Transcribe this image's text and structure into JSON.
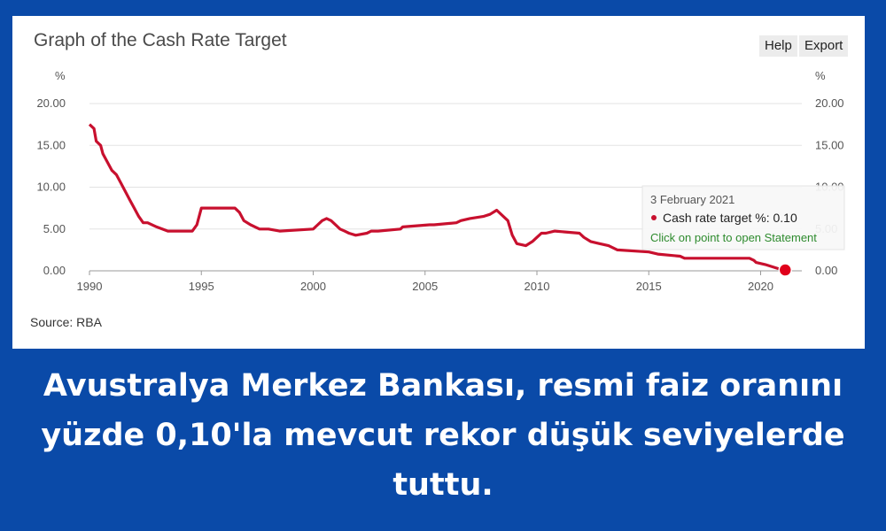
{
  "chart_data": {
    "type": "line",
    "title": "Graph of the Cash Rate Target",
    "ylabel_left": "%",
    "ylabel_right": "%",
    "ylim": [
      0,
      20
    ],
    "xlim": [
      1990,
      2021.1
    ],
    "y_ticks": [
      "0.00",
      "5.00",
      "10.00",
      "15.00",
      "20.00"
    ],
    "x_ticks": [
      "1990",
      "1995",
      "2000",
      "2005",
      "2010",
      "2015",
      "2020"
    ],
    "grid": true,
    "legend": "none",
    "series": [
      {
        "color": "#c8102e",
        "x": [
          1990.0,
          1990.2,
          1990.3,
          1990.5,
          1990.6,
          1990.8,
          1991.0,
          1991.2,
          1991.4,
          1991.6,
          1991.8,
          1992.0,
          1992.2,
          1992.4,
          1992.6,
          1993.0,
          1993.5,
          1994.6,
          1994.8,
          1995.0,
          1996.5,
          1996.7,
          1996.9,
          1997.2,
          1997.6,
          1998.0,
          1998.5,
          2000.0,
          2000.2,
          2000.4,
          2000.6,
          2000.8,
          2001.2,
          2001.4,
          2001.6,
          2001.9,
          2002.4,
          2002.6,
          2002.9,
          2003.9,
          2004.0,
          2005.2,
          2005.4,
          2006.4,
          2006.6,
          2007.0,
          2007.6,
          2007.9,
          2008.2,
          2008.7,
          2008.9,
          2009.1,
          2009.5,
          2009.8,
          2010.0,
          2010.2,
          2010.4,
          2010.8,
          2011.9,
          2012.1,
          2012.4,
          2012.8,
          2013.2,
          2013.6,
          2015.0,
          2015.4,
          2016.4,
          2016.6,
          2019.5,
          2019.7,
          2019.8,
          2020.2,
          2020.8,
          2021.1
        ],
        "y": [
          17.5,
          17.0,
          15.5,
          15.0,
          14.0,
          13.0,
          12.0,
          11.5,
          10.5,
          9.5,
          8.5,
          7.5,
          6.5,
          5.75,
          5.75,
          5.25,
          4.75,
          4.75,
          5.5,
          7.5,
          7.5,
          7.0,
          6.0,
          5.5,
          5.0,
          5.0,
          4.75,
          5.0,
          5.5,
          6.0,
          6.25,
          6.0,
          5.0,
          4.75,
          4.5,
          4.25,
          4.5,
          4.75,
          4.75,
          5.0,
          5.25,
          5.5,
          5.5,
          5.75,
          6.0,
          6.25,
          6.5,
          6.75,
          7.25,
          6.0,
          4.25,
          3.25,
          3.0,
          3.5,
          4.0,
          4.5,
          4.5,
          4.75,
          4.5,
          4.0,
          3.5,
          3.25,
          3.0,
          2.5,
          2.25,
          2.0,
          1.75,
          1.5,
          1.5,
          1.25,
          1.0,
          0.75,
          0.25,
          0.1
        ]
      }
    ],
    "highlight_point": {
      "x": 2021.1,
      "y": 0.1,
      "color": "#e0001b"
    },
    "tooltip": {
      "date": "3 February 2021",
      "label": "Cash rate target %: 0.10",
      "link": "Click on point to open Statement"
    },
    "source": "Source: RBA"
  },
  "toolbar": {
    "help_label": "Help",
    "export_label": "Export"
  },
  "caption": "Avustralya Merkez Bankası, resmi faiz oranını yüzde 0,10'la mevcut rekor düşük seviyelerde tuttu."
}
